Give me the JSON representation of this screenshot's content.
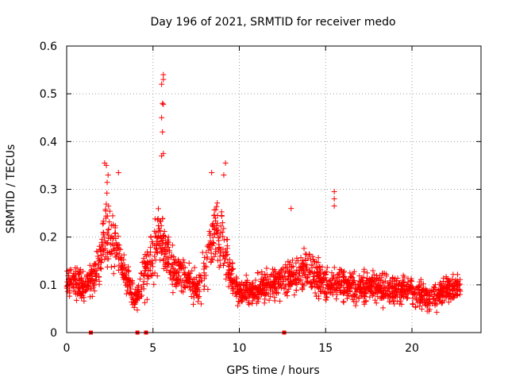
{
  "chart_data": {
    "type": "scatter",
    "title": "Day 196 of 2021, SRMTID for receiver medo",
    "xlabel": "GPS time / hours",
    "ylabel": "SRMTID / TECUs",
    "xlim": [
      0,
      24
    ],
    "ylim": [
      0,
      0.6
    ],
    "xticks": [
      0,
      5,
      10,
      15,
      20
    ],
    "yticks": [
      0,
      0.1,
      0.2,
      0.3,
      0.4,
      0.5,
      0.6
    ],
    "xtick_labels": [
      "0",
      "5",
      "10",
      "15",
      "20"
    ],
    "ytick_labels": [
      "0",
      "0.1",
      "0.2",
      "0.3",
      "0.4",
      "0.5",
      "0.6"
    ],
    "grid": true,
    "marker": "+",
    "color": "#ff0000",
    "trend": [
      [
        0.0,
        0.1
      ],
      [
        0.5,
        0.11
      ],
      [
        1.0,
        0.09
      ],
      [
        1.5,
        0.12
      ],
      [
        2.0,
        0.16
      ],
      [
        2.3,
        0.22
      ],
      [
        2.7,
        0.19
      ],
      [
        3.0,
        0.17
      ],
      [
        3.5,
        0.11
      ],
      [
        4.0,
        0.07
      ],
      [
        4.5,
        0.12
      ],
      [
        5.0,
        0.17
      ],
      [
        5.5,
        0.21
      ],
      [
        6.0,
        0.14
      ],
      [
        6.5,
        0.12
      ],
      [
        7.0,
        0.12
      ],
      [
        7.5,
        0.09
      ],
      [
        8.0,
        0.12
      ],
      [
        8.5,
        0.22
      ],
      [
        9.0,
        0.19
      ],
      [
        9.5,
        0.12
      ],
      [
        10.0,
        0.08
      ],
      [
        11.0,
        0.09
      ],
      [
        12.0,
        0.1
      ],
      [
        13.0,
        0.12
      ],
      [
        14.0,
        0.13
      ],
      [
        15.0,
        0.1
      ],
      [
        16.0,
        0.1
      ],
      [
        17.0,
        0.09
      ],
      [
        18.0,
        0.1
      ],
      [
        19.0,
        0.09
      ],
      [
        20.0,
        0.09
      ],
      [
        21.0,
        0.07
      ],
      [
        22.0,
        0.09
      ],
      [
        22.8,
        0.09
      ]
    ],
    "peaks": [
      {
        "x": 5.6,
        "y": 0.54
      },
      {
        "x": 5.6,
        "y": 0.53
      },
      {
        "x": 5.5,
        "y": 0.52
      },
      {
        "x": 5.55,
        "y": 0.48
      },
      {
        "x": 5.6,
        "y": 0.478
      },
      {
        "x": 5.5,
        "y": 0.45
      },
      {
        "x": 5.55,
        "y": 0.42
      },
      {
        "x": 5.6,
        "y": 0.375
      },
      {
        "x": 5.5,
        "y": 0.37
      },
      {
        "x": 2.2,
        "y": 0.355
      },
      {
        "x": 2.3,
        "y": 0.35
      },
      {
        "x": 2.4,
        "y": 0.33
      },
      {
        "x": 3.0,
        "y": 0.335
      },
      {
        "x": 9.2,
        "y": 0.355
      },
      {
        "x": 9.1,
        "y": 0.33
      },
      {
        "x": 8.4,
        "y": 0.335
      },
      {
        "x": 13.0,
        "y": 0.26
      },
      {
        "x": 15.5,
        "y": 0.295
      },
      {
        "x": 15.5,
        "y": 0.28
      },
      {
        "x": 15.5,
        "y": 0.265
      }
    ],
    "zero_markers": [
      1.4,
      4.1,
      4.6,
      12.6
    ],
    "n_points": 2000
  }
}
